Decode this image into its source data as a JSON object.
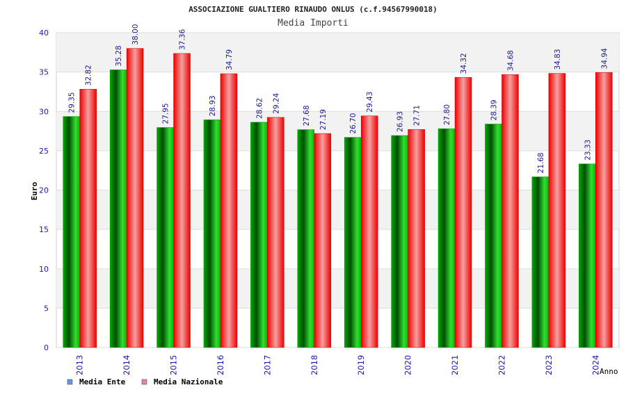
{
  "chart_data": {
    "type": "bar",
    "title": "ASSOCIAZIONE GUALTIERO RINAUDO ONLUS (c.f.94567990018)",
    "subtitle": "Media Importi",
    "xlabel": "Anno",
    "ylabel": "Euro",
    "ylim": [
      0,
      40
    ],
    "yticks": [
      "0",
      "5",
      "10",
      "15",
      "20",
      "25",
      "30",
      "35",
      "40"
    ],
    "grid": true,
    "legend_position": "bottom-left",
    "categories": [
      "2013",
      "2014",
      "2015",
      "2016",
      "2017",
      "2018",
      "2019",
      "2020",
      "2021",
      "2022",
      "2023",
      "2024"
    ],
    "series": [
      {
        "name": "Media Ente",
        "color": "#00a000",
        "legend_color": "#6699ee",
        "values": [
          29.35,
          35.28,
          27.95,
          28.93,
          28.62,
          27.68,
          26.7,
          26.93,
          27.8,
          28.39,
          21.68,
          23.33
        ],
        "labels": [
          "29.35",
          "35.28",
          "27.95",
          "28.93",
          "28.62",
          "27.68",
          "26.70",
          "26.93",
          "27.80",
          "28.39",
          "21.68",
          "23.33"
        ]
      },
      {
        "name": "Media Nazionale",
        "color": "#ee0000",
        "legend_color": "#dd88aa",
        "values": [
          32.82,
          38.0,
          37.36,
          34.79,
          29.24,
          27.19,
          29.43,
          27.71,
          34.32,
          34.68,
          34.83,
          34.94
        ],
        "labels": [
          "32.82",
          "38.00",
          "37.36",
          "34.79",
          "29.24",
          "27.19",
          "29.43",
          "27.71",
          "34.32",
          "34.68",
          "34.83",
          "34.94"
        ]
      }
    ]
  }
}
